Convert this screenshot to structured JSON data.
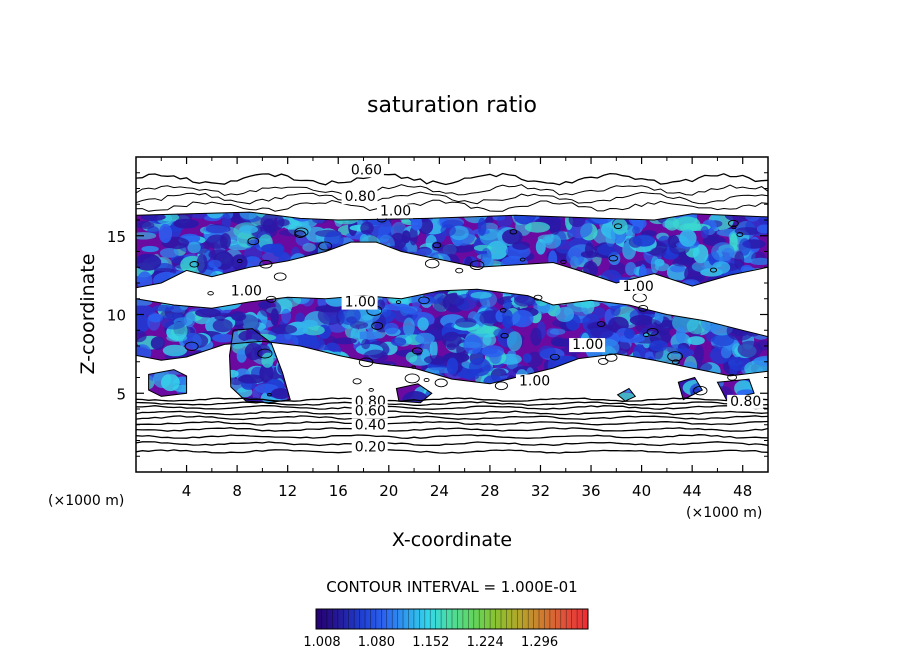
{
  "chart_data": {
    "type": "heatmap",
    "title": "saturation ratio",
    "xlabel": "X-coordinate",
    "ylabel": "Z-coordinate",
    "x_unit": "(×1000 m)",
    "xlim": [
      0,
      50
    ],
    "ylim": [
      0,
      20
    ],
    "x_ticks": [
      "4",
      "8",
      "12",
      "16",
      "20",
      "24",
      "28",
      "32",
      "36",
      "40",
      "44",
      "48"
    ],
    "y_ticks": [
      "5",
      "10",
      "15"
    ],
    "contour_interval_text": "CONTOUR INTERVAL = 1.000E-01",
    "contour_labels": [
      {
        "text": "0.60",
        "x": 17.0,
        "y": 18.9
      },
      {
        "text": "0.80",
        "x": 16.5,
        "y": 17.2
      },
      {
        "text": "1.00",
        "x": 19.3,
        "y": 16.3
      },
      {
        "text": "1.00",
        "x": 7.5,
        "y": 11.2
      },
      {
        "text": "1.00",
        "x": 16.5,
        "y": 10.5
      },
      {
        "text": "1.00",
        "x": 38.5,
        "y": 11.5
      },
      {
        "text": "1.00",
        "x": 34.5,
        "y": 7.8
      },
      {
        "text": "1.00",
        "x": 30.3,
        "y": 5.5
      },
      {
        "text": "0.80",
        "x": 17.3,
        "y": 4.2
      },
      {
        "text": "0.60",
        "x": 17.3,
        "y": 3.6
      },
      {
        "text": "0.40",
        "x": 17.3,
        "y": 2.7
      },
      {
        "text": "0.20",
        "x": 17.3,
        "y": 1.3
      },
      {
        "text": "0.80",
        "x": 47.0,
        "y": 4.2
      }
    ],
    "colorbar": {
      "min": 1.0,
      "max": 1.36,
      "tick_labels": [
        "1.008",
        "1.080",
        "1.152",
        "1.224",
        "1.296"
      ],
      "colors": [
        "#26006f",
        "#241a9a",
        "#1f3fd0",
        "#2c63f0",
        "#2fa0ee",
        "#33d8ea",
        "#4fdc9a",
        "#63d45a",
        "#8cc030",
        "#b5a52a",
        "#d07a30",
        "#e0503a",
        "#ee2b33"
      ],
      "supersaturation_base_color": "#6b0aa0"
    },
    "supersaturated_regions": [
      {
        "desc": "upper cloud layer, left",
        "pts": [
          [
            0,
            16.3
          ],
          [
            9,
            16.5
          ],
          [
            13,
            16.1
          ],
          [
            16,
            16.0
          ],
          [
            23,
            16.1
          ],
          [
            30,
            16.3
          ],
          [
            37,
            16.1
          ],
          [
            41,
            16.0
          ],
          [
            44,
            16.4
          ],
          [
            50,
            16.2
          ],
          [
            50,
            13.0
          ],
          [
            47,
            12.5
          ],
          [
            44,
            11.8
          ],
          [
            41,
            12.6
          ],
          [
            38,
            12.0
          ],
          [
            35,
            12.8
          ],
          [
            33,
            13.3
          ],
          [
            31,
            13.2
          ],
          [
            27,
            13.0
          ],
          [
            24,
            13.5
          ],
          [
            21,
            14.0
          ],
          [
            19,
            14.6
          ],
          [
            17,
            14.6
          ],
          [
            15,
            14.0
          ],
          [
            12,
            13.4
          ],
          [
            9,
            13.0
          ],
          [
            6,
            12.4
          ],
          [
            4,
            12.8
          ],
          [
            2,
            12.0
          ],
          [
            0,
            11.7
          ]
        ]
      },
      {
        "desc": "mid band",
        "pts": [
          [
            0,
            11.0
          ],
          [
            3,
            10.6
          ],
          [
            6,
            10.4
          ],
          [
            9,
            10.8
          ],
          [
            12,
            11.1
          ],
          [
            15,
            11.0
          ],
          [
            18,
            11.2
          ],
          [
            21,
            11.0
          ],
          [
            24,
            11.5
          ],
          [
            27,
            11.6
          ],
          [
            31,
            11.2
          ],
          [
            33,
            10.6
          ],
          [
            36,
            10.9
          ],
          [
            39,
            10.6
          ],
          [
            42,
            10.0
          ],
          [
            45,
            9.6
          ],
          [
            48,
            9.0
          ],
          [
            50,
            8.6
          ],
          [
            50,
            6.4
          ],
          [
            47,
            6.1
          ],
          [
            44,
            6.6
          ],
          [
            41,
            7.1
          ],
          [
            38,
            7.5
          ],
          [
            35,
            7.2
          ],
          [
            33,
            6.6
          ],
          [
            31,
            6.2
          ],
          [
            28,
            5.6
          ],
          [
            25,
            5.9
          ],
          [
            22,
            6.6
          ],
          [
            19,
            6.9
          ],
          [
            16,
            7.4
          ],
          [
            13,
            8.0
          ],
          [
            10,
            8.3
          ],
          [
            7,
            8.1
          ],
          [
            4,
            7.3
          ],
          [
            2,
            7.1
          ],
          [
            0,
            7.4
          ]
        ]
      },
      {
        "desc": "left lower blob",
        "pts": [
          [
            1,
            6.2
          ],
          [
            3,
            6.5
          ],
          [
            4,
            6.1
          ],
          [
            4,
            5.0
          ],
          [
            2,
            4.8
          ],
          [
            1,
            5.2
          ]
        ]
      },
      {
        "desc": "purple column near x=9",
        "pts": [
          [
            7.7,
            9.0
          ],
          [
            9.2,
            9.1
          ],
          [
            10.7,
            8.2
          ],
          [
            11.6,
            6.3
          ],
          [
            12.2,
            4.6
          ],
          [
            10.5,
            4.4
          ],
          [
            8.7,
            4.5
          ],
          [
            7.5,
            5.4
          ],
          [
            7.4,
            7.4
          ]
        ]
      },
      {
        "desc": "bottom lens 1",
        "pts": [
          [
            20.6,
            5.3
          ],
          [
            22.3,
            5.6
          ],
          [
            23.4,
            5.0
          ],
          [
            22.5,
            4.4
          ],
          [
            20.8,
            4.5
          ]
        ]
      },
      {
        "desc": "bottom lens 2",
        "pts": [
          [
            38.1,
            4.9
          ],
          [
            39.0,
            5.3
          ],
          [
            39.5,
            4.8
          ],
          [
            38.7,
            4.5
          ]
        ]
      },
      {
        "desc": "bottom lens 3",
        "pts": [
          [
            42.9,
            5.7
          ],
          [
            44.2,
            6.0
          ],
          [
            44.8,
            5.2
          ],
          [
            43.3,
            4.6
          ]
        ]
      },
      {
        "desc": "bottom lens 4",
        "pts": [
          [
            46.0,
            5.7
          ],
          [
            48.5,
            5.9
          ],
          [
            48.9,
            5.0
          ],
          [
            46.7,
            4.6
          ]
        ]
      }
    ]
  }
}
